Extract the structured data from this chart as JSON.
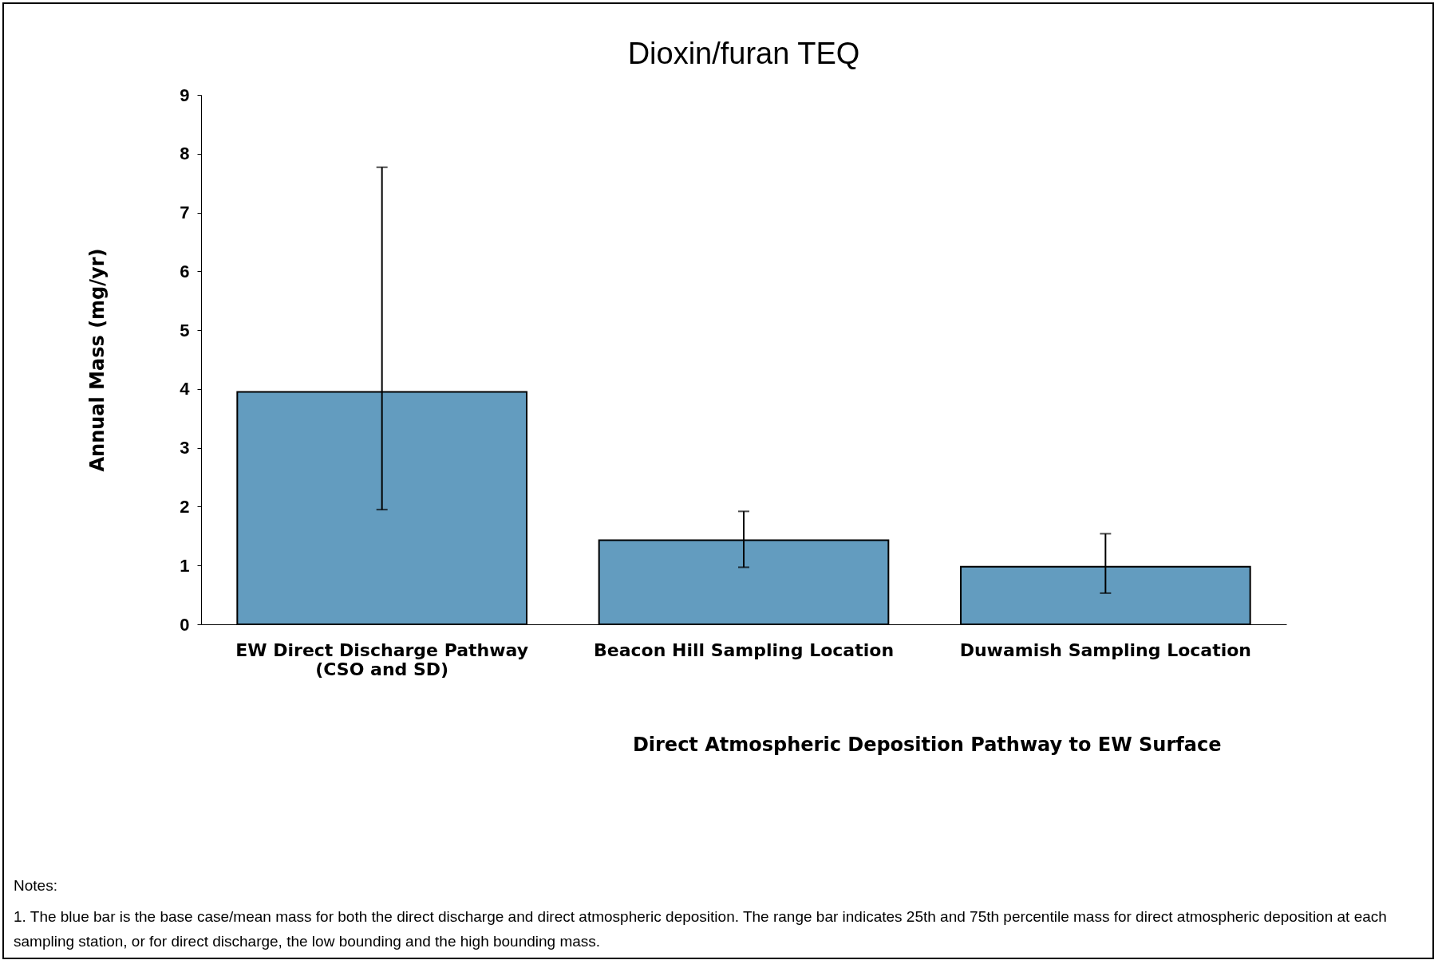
{
  "chart_data": {
    "type": "bar",
    "title": "Dioxin/furan TEQ",
    "ylabel": "Annual Mass (mg/yr)",
    "categories": [
      "EW Direct Discharge Pathway (CSO and SD)",
      "Beacon Hill Sampling Location",
      "Duwamish Sampling Location"
    ],
    "values": [
      3.95,
      1.43,
      0.98
    ],
    "errors": [
      [
        1.95,
        7.77
      ],
      [
        0.97,
        1.92
      ],
      [
        0.53,
        1.54
      ]
    ],
    "color": "#639cbf",
    "ylim": [
      0,
      9
    ],
    "yticks": [
      0,
      1,
      2,
      3,
      4,
      5,
      6,
      7,
      8,
      9
    ],
    "grid": false,
    "annotations": [
      "Direct Atmospheric  Deposition Pathway to EW Surface",
      "Notes:",
      "1. The blue bar is the base case/mean mass for both the direct discharge and direct atmospheric deposition.  The range bar indicates 25th and 75th percentile mass for direct atmospheric deposition at each sampling station, or for direct discharge, the low bounding and the high bounding mass."
    ]
  }
}
